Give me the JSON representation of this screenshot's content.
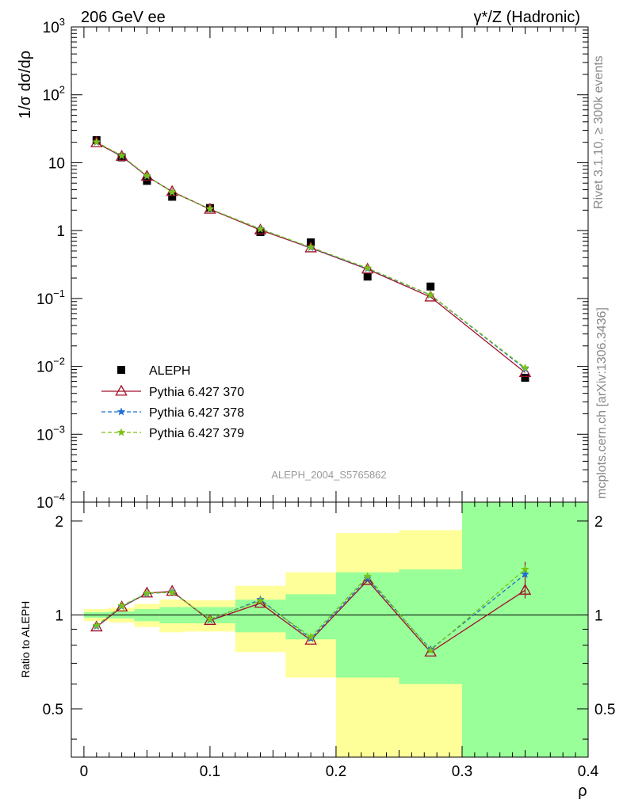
{
  "header": {
    "left": "206 GeV ee",
    "right": "γ*/Z (Hadronic)"
  },
  "side_text": {
    "upper": "Rivet 3.1.10, ≥ 300k events",
    "lower": "mcplots.cern.ch [arXiv:1306.3436]"
  },
  "watermark": "ALEPH_2004_S5765862",
  "colors": {
    "data": "#000000",
    "p370": "#a0102a",
    "p378": "#1f6fd1",
    "p379": "#7ac215",
    "band_inner": "#99ff99",
    "band_outer": "#ffff99"
  },
  "chart_data": [
    {
      "type": "scatter",
      "panel": "main",
      "ylabel": "1/σ dσ/dρ",
      "yscale": "log",
      "ylim": [
        0.0001,
        1000
      ],
      "xlim": [
        -0.01,
        0.4
      ],
      "y_ticks": [
        {
          "base": "10",
          "exp": "3"
        },
        {
          "base": "10",
          "exp": "2"
        },
        {
          "base": "10",
          "exp": ""
        },
        {
          "base": "1",
          "exp": ""
        },
        {
          "base": "10",
          "exp": "−1"
        },
        {
          "base": "10",
          "exp": "−2"
        },
        {
          "base": "10",
          "exp": "−3"
        },
        {
          "base": "10",
          "exp": "−4"
        }
      ],
      "x": [
        0.01,
        0.03,
        0.05,
        0.07,
        0.1,
        0.14,
        0.18,
        0.225,
        0.275,
        0.35
      ],
      "series": [
        {
          "name": "ALEPH",
          "marker": "square",
          "values": [
            21.5,
            12.0,
            5.4,
            3.15,
            2.15,
            0.95,
            0.67,
            0.21,
            0.15,
            0.0068
          ]
        },
        {
          "name": "Pythia 6.427 370",
          "marker": "triangle",
          "line": "solid",
          "values": [
            19.6,
            12.4,
            6.3,
            3.75,
            2.06,
            1.02,
            0.555,
            0.27,
            0.105,
            0.0081
          ]
        },
        {
          "name": "Pythia 6.427 378",
          "marker": "star",
          "line": "dashed",
          "values": [
            20.0,
            12.6,
            6.35,
            3.7,
            2.08,
            1.06,
            0.56,
            0.275,
            0.112,
            0.0092
          ]
        },
        {
          "name": "Pythia 6.427 379",
          "marker": "star",
          "line": "dashed",
          "values": [
            20.2,
            12.7,
            6.4,
            3.68,
            2.09,
            1.05,
            0.57,
            0.28,
            0.113,
            0.0095
          ]
        }
      ]
    },
    {
      "type": "line",
      "panel": "ratio",
      "xlabel": "ρ",
      "ylabel": "Ratio to ALEPH",
      "yscale": "log",
      "ylim": [
        0.35,
        2.3
      ],
      "xlim": [
        -0.01,
        0.4
      ],
      "x_ticks": [
        "0",
        "0.1",
        "0.2",
        "0.3",
        "0.4"
      ],
      "y_ticks": [
        "2",
        "1",
        "0.5"
      ],
      "bands": [
        {
          "x0": 0.0,
          "x1": 0.02,
          "inner": [
            0.98,
            1.02
          ],
          "outer": [
            0.955,
            1.045
          ]
        },
        {
          "x0": 0.02,
          "x1": 0.04,
          "inner": [
            0.975,
            1.025
          ],
          "outer": [
            0.945,
            1.055
          ]
        },
        {
          "x0": 0.04,
          "x1": 0.06,
          "inner": [
            0.955,
            1.045
          ],
          "outer": [
            0.915,
            1.085
          ]
        },
        {
          "x0": 0.06,
          "x1": 0.08,
          "inner": [
            0.94,
            1.06
          ],
          "outer": [
            0.88,
            1.12
          ]
        },
        {
          "x0": 0.08,
          "x1": 0.12,
          "inner": [
            0.94,
            1.06
          ],
          "outer": [
            0.885,
            1.115
          ]
        },
        {
          "x0": 0.12,
          "x1": 0.16,
          "inner": [
            0.88,
            1.12
          ],
          "outer": [
            0.76,
            1.24
          ]
        },
        {
          "x0": 0.16,
          "x1": 0.2,
          "inner": [
            0.835,
            1.165
          ],
          "outer": [
            0.63,
            1.37
          ]
        },
        {
          "x0": 0.2,
          "x1": 0.25,
          "inner": [
            0.63,
            1.37
          ],
          "outer": [
            0.35,
            1.83
          ]
        },
        {
          "x0": 0.25,
          "x1": 0.3,
          "inner": [
            0.6,
            1.4
          ],
          "outer": [
            0.35,
            1.87
          ]
        },
        {
          "x0": 0.3,
          "x1": 0.4,
          "inner": [
            0.35,
            2.3
          ],
          "outer": [
            0.35,
            2.3
          ]
        }
      ],
      "x": [
        0.01,
        0.03,
        0.05,
        0.07,
        0.1,
        0.14,
        0.18,
        0.225,
        0.275,
        0.35
      ],
      "series": [
        {
          "name": "Pythia 6.427 370",
          "marker": "triangle",
          "line": "solid",
          "values": [
            0.915,
            1.06,
            1.175,
            1.19,
            0.96,
            1.09,
            0.83,
            1.29,
            0.76,
            1.2
          ]
        },
        {
          "name": "Pythia 6.427 378",
          "marker": "star",
          "line": "dashed",
          "values": [
            0.92,
            1.065,
            1.17,
            1.185,
            0.965,
            1.12,
            0.84,
            1.31,
            0.775,
            1.35
          ]
        },
        {
          "name": "Pythia 6.427 379",
          "marker": "star",
          "line": "dashed",
          "values": [
            0.925,
            1.07,
            1.175,
            1.18,
            0.97,
            1.11,
            0.85,
            1.33,
            0.77,
            1.4
          ]
        }
      ],
      "error_last": [
        1.13,
        1.28
      ]
    }
  ]
}
